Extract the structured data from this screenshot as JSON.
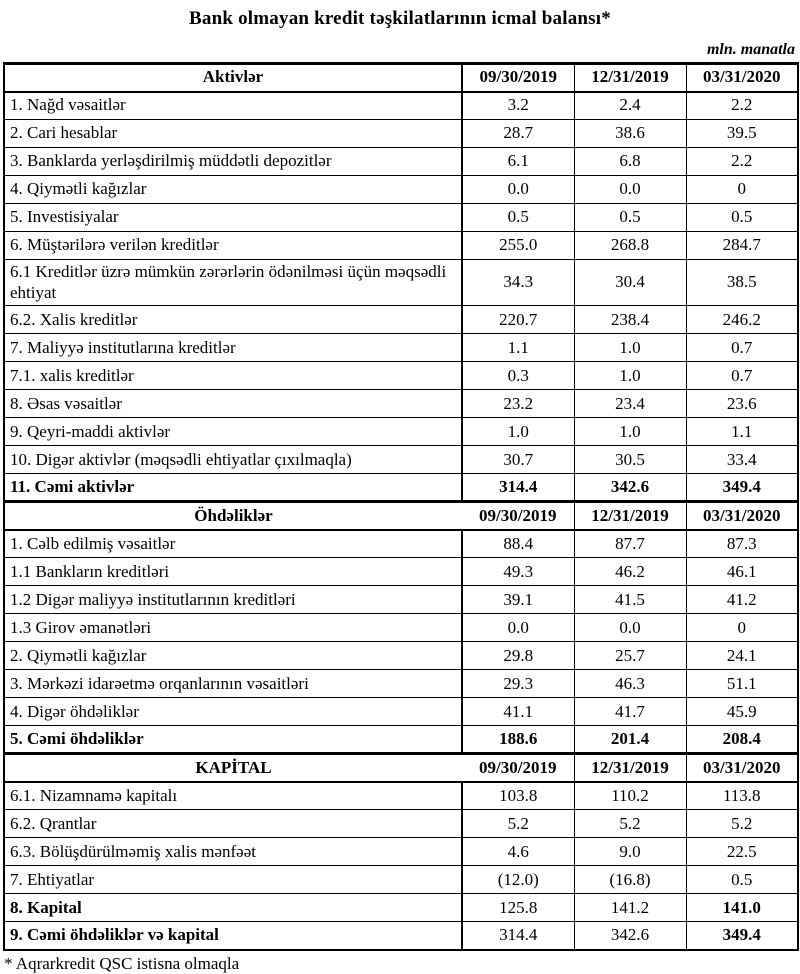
{
  "title": "Bank olmayan kredit təşkilatlarının icmal balansı*",
  "unit_note": "mln. manatla",
  "footnote": "* Aqrarkredit QSC istisna olmaqla",
  "date_columns": [
    "09/30/2019",
    "12/31/2019",
    "03/31/2020"
  ],
  "sections": [
    {
      "header": "Aktivlər",
      "rows": [
        {
          "label": "1. Nağd vəsaitlər",
          "values": [
            "3.2",
            "2.4",
            "2.2"
          ]
        },
        {
          "label": "2. Cari hesablar",
          "values": [
            "28.7",
            "38.6",
            "39.5"
          ]
        },
        {
          "label": "3. Banklarda yerləşdirilmiş müddətli depozitlər",
          "values": [
            "6.1",
            "6.8",
            "2.2"
          ]
        },
        {
          "label": "4. Qiymətli kağızlar",
          "values": [
            "0.0",
            "0.0",
            "0"
          ]
        },
        {
          "label": "5. Investisiyalar",
          "values": [
            "0.5",
            "0.5",
            "0.5"
          ]
        },
        {
          "label": "6. Müştərilərə verilən kreditlər",
          "values": [
            "255.0",
            "268.8",
            "284.7"
          ]
        },
        {
          "label": "6.1 Kreditlər üzrə mümkün zərərlərin ödənilməsi üçün məqsədli ehtiyat",
          "values": [
            "34.3",
            "30.4",
            "38.5"
          ]
        },
        {
          "label": "6.2. Xalis kreditlər",
          "values": [
            "220.7",
            "238.4",
            "246.2"
          ]
        },
        {
          "label": "7. Maliyyə institutlarına kreditlər",
          "values": [
            "1.1",
            "1.0",
            "0.7"
          ]
        },
        {
          "label": "7.1.  xalis kreditlər",
          "values": [
            "0.3",
            "1.0",
            "0.7"
          ]
        },
        {
          "label": "8.  Əsas vəsaitlər",
          "values": [
            "23.2",
            "23.4",
            "23.6"
          ]
        },
        {
          "label": "9. Qeyri-maddi aktivlər",
          "values": [
            "1.0",
            "1.0",
            "1.1"
          ]
        },
        {
          "label": "10. Digər aktivlər (məqsədli ehtiyatlar çıxılmaqla)",
          "values": [
            "30.7",
            "30.5",
            "33.4"
          ]
        },
        {
          "label": "11. Cəmi aktivlər",
          "values": [
            "314.4",
            "342.6",
            "349.4"
          ],
          "label_bold": true,
          "values_bold": [
            true,
            true,
            true
          ]
        }
      ]
    },
    {
      "header": "Öhdəliklər",
      "rows": [
        {
          "label": "1. Cəlb edilmiş vəsaitlər",
          "values": [
            "88.4",
            "87.7",
            "87.3"
          ]
        },
        {
          "label": "1.1 Bankların kreditləri",
          "values": [
            "49.3",
            "46.2",
            "46.1"
          ]
        },
        {
          "label": "1.2 Digər maliyyə institutlarının kreditləri",
          "values": [
            "39.1",
            "41.5",
            "41.2"
          ]
        },
        {
          "label": "1.3 Girov əmanətləri",
          "values": [
            "0.0",
            "0.0",
            "0"
          ]
        },
        {
          "label": "2. Qiymətli kağızlar",
          "values": [
            "29.8",
            "25.7",
            "24.1"
          ]
        },
        {
          "label": "3. Mərkəzi idarəetmə orqanlarının vəsaitləri",
          "values": [
            "29.3",
            "46.3",
            "51.1"
          ]
        },
        {
          "label": "4. Digər öhdəliklər",
          "values": [
            "41.1",
            "41.7",
            "45.9"
          ]
        },
        {
          "label": "5. Cəmi öhdəliklər",
          "values": [
            "188.6",
            "201.4",
            "208.4"
          ],
          "label_bold": true,
          "values_bold": [
            true,
            true,
            true
          ]
        }
      ]
    },
    {
      "header": "KAPİTAL",
      "rows": [
        {
          "label": "6.1. Nizamnamə kapitalı",
          "values": [
            "103.8",
            "110.2",
            "113.8"
          ]
        },
        {
          "label": "6.2. Qrantlar",
          "values": [
            "5.2",
            "5.2",
            "5.2"
          ]
        },
        {
          "label": "6.3. Bölüşdürülməmiş xalis mənfəət",
          "values": [
            "4.6",
            "9.0",
            "22.5"
          ]
        },
        {
          "label": "7. Ehtiyatlar",
          "values": [
            "(12.0)",
            "(16.8)",
            "0.5"
          ]
        },
        {
          "label": "8. Kapital",
          "values": [
            "125.8",
            "141.2",
            "141.0"
          ],
          "label_bold": true,
          "values_bold": [
            false,
            false,
            true
          ]
        },
        {
          "label": "9. Cəmi öhdəliklər və kapital",
          "values": [
            "314.4",
            "342.6",
            "349.4"
          ],
          "label_bold": true,
          "values_bold": [
            false,
            false,
            true
          ]
        }
      ]
    }
  ]
}
